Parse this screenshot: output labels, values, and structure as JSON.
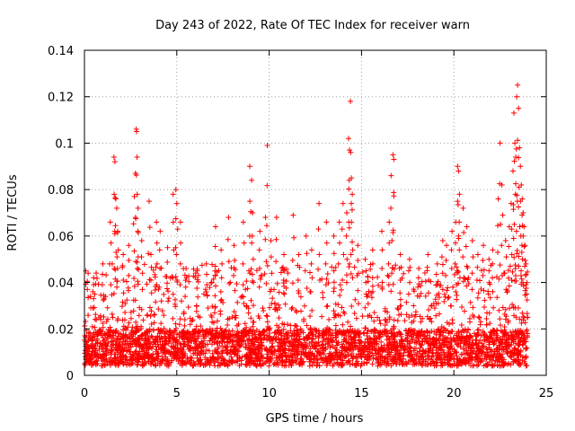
{
  "chart_data": {
    "type": "scatter",
    "title": "Day 243 of 2022, Rate Of TEC Index for receiver warn",
    "xlabel": "GPS time / hours",
    "ylabel": "ROTI / TECUs",
    "xlim": [
      0,
      25
    ],
    "ylim": [
      0,
      0.14
    ],
    "xticks": [
      0,
      5,
      10,
      15,
      20,
      25
    ],
    "yticks": [
      0,
      0.02,
      0.04,
      0.06,
      0.08,
      0.1,
      0.12,
      0.14
    ],
    "xtick_labels": [
      "0",
      "5",
      "10",
      "15",
      "20",
      "25"
    ],
    "ytick_labels": [
      "0",
      "0.02",
      "0.04",
      "0.06",
      "0.08",
      "0.1",
      "0.12",
      "0.14"
    ],
    "grid": true,
    "marker": "plus",
    "color": "#ff0000",
    "x_range_of_data": [
      0,
      24
    ],
    "background_band": {
      "y_min": 0.004,
      "y_max": 0.03
    },
    "highlights": [
      {
        "x": 0.2,
        "y": 0.044
      },
      {
        "x": 0.5,
        "y": 0.042
      },
      {
        "x": 1.0,
        "y": 0.048
      },
      {
        "x": 1.4,
        "y": 0.066
      },
      {
        "x": 1.6,
        "y": 0.094
      },
      {
        "x": 1.65,
        "y": 0.092
      },
      {
        "x": 1.7,
        "y": 0.076
      },
      {
        "x": 1.75,
        "y": 0.072
      },
      {
        "x": 1.8,
        "y": 0.062
      },
      {
        "x": 2.1,
        "y": 0.052
      },
      {
        "x": 2.4,
        "y": 0.056
      },
      {
        "x": 2.7,
        "y": 0.077
      },
      {
        "x": 2.8,
        "y": 0.106
      },
      {
        "x": 2.82,
        "y": 0.105
      },
      {
        "x": 2.85,
        "y": 0.094
      },
      {
        "x": 2.9,
        "y": 0.072
      },
      {
        "x": 3.1,
        "y": 0.058
      },
      {
        "x": 3.5,
        "y": 0.075
      },
      {
        "x": 3.6,
        "y": 0.052
      },
      {
        "x": 3.9,
        "y": 0.066
      },
      {
        "x": 4.1,
        "y": 0.062
      },
      {
        "x": 4.5,
        "y": 0.055
      },
      {
        "x": 4.8,
        "y": 0.078
      },
      {
        "x": 4.95,
        "y": 0.08
      },
      {
        "x": 5.0,
        "y": 0.074
      },
      {
        "x": 5.2,
        "y": 0.066
      },
      {
        "x": 5.5,
        "y": 0.046
      },
      {
        "x": 6.1,
        "y": 0.045
      },
      {
        "x": 6.6,
        "y": 0.048
      },
      {
        "x": 7.1,
        "y": 0.064
      },
      {
        "x": 7.4,
        "y": 0.054
      },
      {
        "x": 7.8,
        "y": 0.068
      },
      {
        "x": 8.1,
        "y": 0.056
      },
      {
        "x": 8.6,
        "y": 0.066
      },
      {
        "x": 8.95,
        "y": 0.09
      },
      {
        "x": 9.05,
        "y": 0.084
      },
      {
        "x": 9.1,
        "y": 0.07
      },
      {
        "x": 9.5,
        "y": 0.062
      },
      {
        "x": 9.8,
        "y": 0.068
      },
      {
        "x": 9.9,
        "y": 0.099
      },
      {
        "x": 10.1,
        "y": 0.058
      },
      {
        "x": 10.4,
        "y": 0.068
      },
      {
        "x": 10.8,
        "y": 0.052
      },
      {
        "x": 11.3,
        "y": 0.069
      },
      {
        "x": 11.6,
        "y": 0.052
      },
      {
        "x": 12.0,
        "y": 0.06
      },
      {
        "x": 12.3,
        "y": 0.054
      },
      {
        "x": 12.7,
        "y": 0.074
      },
      {
        "x": 13.1,
        "y": 0.066
      },
      {
        "x": 13.5,
        "y": 0.06
      },
      {
        "x": 13.8,
        "y": 0.066
      },
      {
        "x": 14.0,
        "y": 0.074
      },
      {
        "x": 14.2,
        "y": 0.07
      },
      {
        "x": 14.3,
        "y": 0.102
      },
      {
        "x": 14.35,
        "y": 0.097
      },
      {
        "x": 14.4,
        "y": 0.118
      },
      {
        "x": 14.45,
        "y": 0.085
      },
      {
        "x": 14.5,
        "y": 0.078
      },
      {
        "x": 14.8,
        "y": 0.056
      },
      {
        "x": 15.2,
        "y": 0.05
      },
      {
        "x": 15.6,
        "y": 0.054
      },
      {
        "x": 16.1,
        "y": 0.062
      },
      {
        "x": 16.5,
        "y": 0.066
      },
      {
        "x": 16.6,
        "y": 0.086
      },
      {
        "x": 16.7,
        "y": 0.095
      },
      {
        "x": 16.75,
        "y": 0.093
      },
      {
        "x": 17.1,
        "y": 0.052
      },
      {
        "x": 17.6,
        "y": 0.05
      },
      {
        "x": 18.1,
        "y": 0.046
      },
      {
        "x": 18.6,
        "y": 0.052
      },
      {
        "x": 19.1,
        "y": 0.048
      },
      {
        "x": 19.4,
        "y": 0.058
      },
      {
        "x": 19.6,
        "y": 0.056
      },
      {
        "x": 19.9,
        "y": 0.062
      },
      {
        "x": 20.1,
        "y": 0.066
      },
      {
        "x": 20.2,
        "y": 0.09
      },
      {
        "x": 20.25,
        "y": 0.088
      },
      {
        "x": 20.3,
        "y": 0.078
      },
      {
        "x": 20.5,
        "y": 0.072
      },
      {
        "x": 20.7,
        "y": 0.064
      },
      {
        "x": 21.0,
        "y": 0.058
      },
      {
        "x": 21.3,
        "y": 0.052
      },
      {
        "x": 21.6,
        "y": 0.056
      },
      {
        "x": 21.9,
        "y": 0.05
      },
      {
        "x": 22.1,
        "y": 0.054
      },
      {
        "x": 22.4,
        "y": 0.076
      },
      {
        "x": 22.5,
        "y": 0.1
      },
      {
        "x": 22.6,
        "y": 0.082
      },
      {
        "x": 22.8,
        "y": 0.058
      },
      {
        "x": 23.0,
        "y": 0.064
      },
      {
        "x": 23.1,
        "y": 0.074
      },
      {
        "x": 23.2,
        "y": 0.088
      },
      {
        "x": 23.25,
        "y": 0.113
      },
      {
        "x": 23.3,
        "y": 0.1
      },
      {
        "x": 23.35,
        "y": 0.094
      },
      {
        "x": 23.4,
        "y": 0.12
      },
      {
        "x": 23.45,
        "y": 0.125
      },
      {
        "x": 23.5,
        "y": 0.115
      },
      {
        "x": 23.55,
        "y": 0.098
      },
      {
        "x": 23.6,
        "y": 0.09
      },
      {
        "x": 23.65,
        "y": 0.082
      },
      {
        "x": 23.7,
        "y": 0.076
      },
      {
        "x": 23.75,
        "y": 0.07
      },
      {
        "x": 23.8,
        "y": 0.064
      },
      {
        "x": 23.85,
        "y": 0.056
      },
      {
        "x": 23.9,
        "y": 0.048
      },
      {
        "x": 23.95,
        "y": 0.04
      }
    ]
  }
}
